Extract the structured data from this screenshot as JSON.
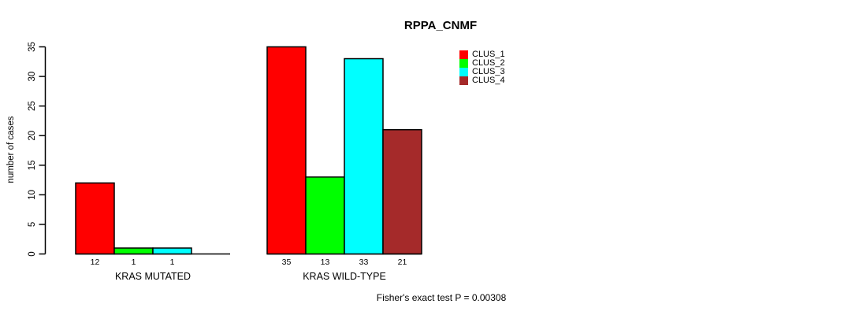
{
  "chart_data": {
    "type": "bar",
    "title": "RPPA_CNMF",
    "xlabel": "",
    "ylabel": "number of cases",
    "categories": [
      "KRAS MUTATED",
      "KRAS WILD-TYPE"
    ],
    "series": [
      {
        "name": "CLUS_1",
        "color": "#ff0000",
        "values": [
          12,
          35
        ]
      },
      {
        "name": "CLUS_2",
        "color": "#00ff00",
        "values": [
          1,
          13
        ]
      },
      {
        "name": "CLUS_3",
        "color": "#00ffff",
        "values": [
          1,
          33
        ]
      },
      {
        "name": "CLUS_4",
        "color": "#a52a2a",
        "values": [
          0,
          21
        ]
      }
    ],
    "bar_value_labels": [
      [
        "12",
        "1",
        "1",
        ""
      ],
      [
        "35",
        "13",
        "33",
        "21"
      ]
    ],
    "y_ticks": [
      0,
      5,
      10,
      15,
      20,
      25,
      30,
      35
    ],
    "ylim": [
      0,
      35
    ],
    "grid": false,
    "legend_position": "top-right",
    "annotation": "Fisher's exact test P = 0.00308"
  }
}
